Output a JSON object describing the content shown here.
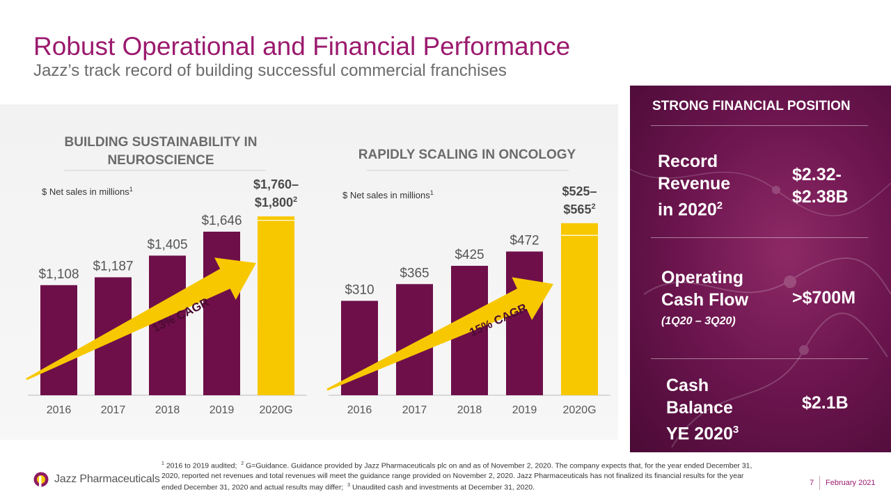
{
  "header": {
    "title": "Robust Operational and Financial Performance",
    "subtitle": "Jazz’s track record of building successful commercial franchises"
  },
  "chart_data": [
    {
      "type": "bar",
      "title_line1": "BUILDING SUSTAINABILITY IN",
      "title_line2": "NEUROSCIENCE",
      "ylabel": "$ Net sales in millions",
      "ylabel_footnote": "1",
      "categories": [
        "2016",
        "2017",
        "2018",
        "2019",
        "2020G"
      ],
      "values": [
        1108,
        1187,
        1405,
        1646,
        1800
      ],
      "range_low": 1760,
      "labels": [
        "$1,108",
        "$1,187",
        "$1,405",
        "$1,646"
      ],
      "guidance_label_line1": "$1,760–",
      "guidance_label_line2": "$1,800",
      "guidance_footnote": "2",
      "cagr": "13% CAGR",
      "colors": {
        "actual": "#6e0f4a",
        "guidance": "#f7c800"
      }
    },
    {
      "type": "bar",
      "title_line1": "RAPIDLY SCALING IN ONCOLOGY",
      "ylabel": "$ Net sales in millions",
      "ylabel_footnote": "1",
      "categories": [
        "2016",
        "2017",
        "2018",
        "2019",
        "2020G"
      ],
      "values": [
        310,
        365,
        425,
        472,
        565
      ],
      "range_low": 525,
      "labels": [
        "$310",
        "$365",
        "$425",
        "$472"
      ],
      "guidance_label_line1": "$525–",
      "guidance_label_line2": "$565",
      "guidance_footnote": "2",
      "cagr": "15% CAGR",
      "colors": {
        "actual": "#6e0f4a",
        "guidance": "#f7c800"
      }
    }
  ],
  "financial": {
    "heading": "STRONG FINANCIAL POSITION",
    "metrics": [
      {
        "label_lines": [
          "Record",
          "Revenue",
          "in 2020"
        ],
        "footnote": "2",
        "value_lines": [
          "$2.32-",
          "$2.38B"
        ]
      },
      {
        "label_lines": [
          "Operating",
          "Cash Flow"
        ],
        "note": "(1Q20 – 3Q20)",
        "value_lines": [
          ">$700M"
        ]
      },
      {
        "label_lines": [
          "Cash",
          "Balance",
          "YE 2020"
        ],
        "footnote": "3",
        "value_lines": [
          "$2.1B"
        ]
      }
    ]
  },
  "footnotes": {
    "n1_mark": "1",
    "n1": "2016 to 2019 audited;",
    "n2_mark": "2",
    "n2": "G=Guidance. Guidance provided by Jazz Pharmaceuticals plc on and as of November 2, 2020.  The company expects that, for the year ended December 31, 2020, reported net revenues and total revenues will meet the guidance range provided on November 2, 2020.  Jazz Pharmaceuticals has not finalized its financial results for the year ended December 31, 2020 and actual results may differ;",
    "n3_mark": "3",
    "n3": "Unaudited cash and investments at December 31, 2020."
  },
  "footer": {
    "logo_text": "Jazz Pharmaceuticals",
    "page_number": "7",
    "date": "February 2021"
  }
}
